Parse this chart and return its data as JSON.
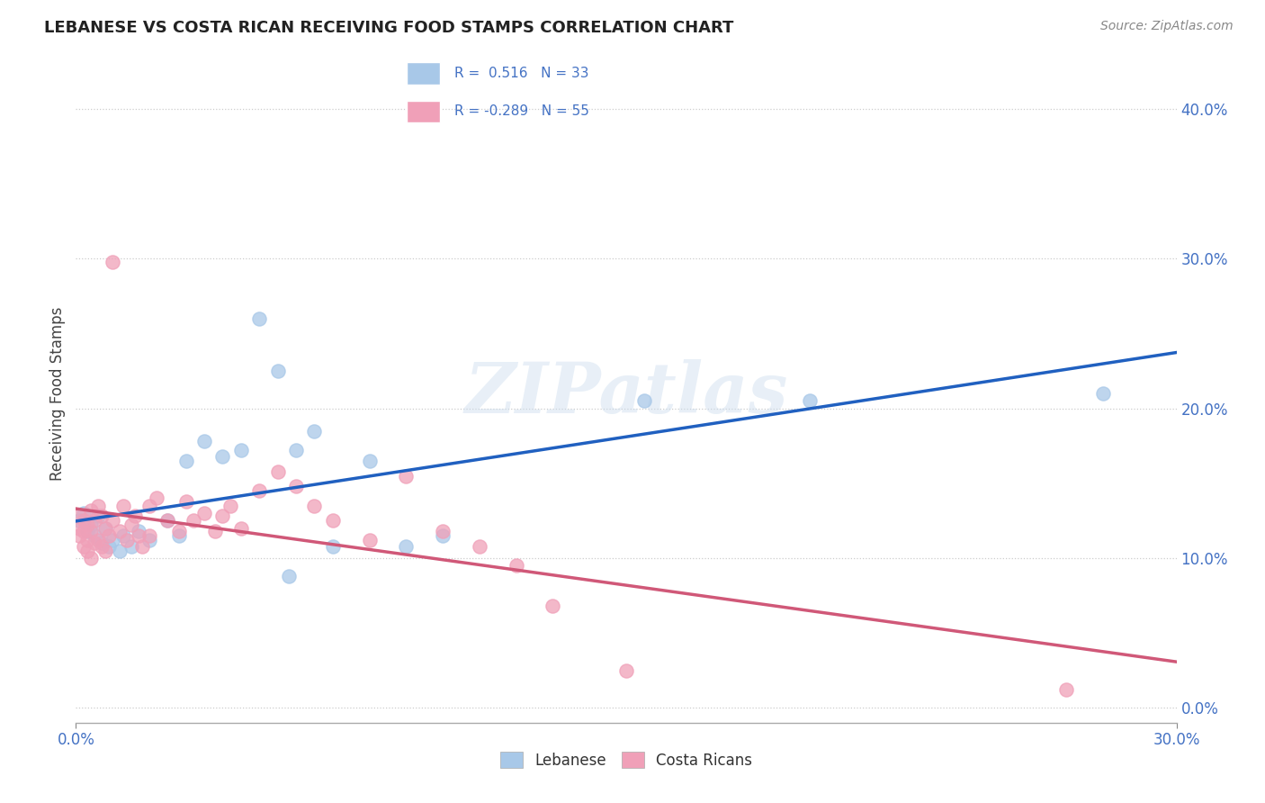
{
  "title": "LEBANESE VS COSTA RICAN RECEIVING FOOD STAMPS CORRELATION CHART",
  "source": "Source: ZipAtlas.com",
  "ylabel": "Receiving Food Stamps",
  "ytick_labels": [
    "0.0%",
    "10.0%",
    "20.0%",
    "30.0%",
    "40.0%"
  ],
  "ytick_values": [
    0.0,
    0.1,
    0.2,
    0.3,
    0.4
  ],
  "xlim": [
    0.0,
    0.3
  ],
  "ylim": [
    -0.01,
    0.43
  ],
  "legend_r_blue": "R =  0.516",
  "legend_n_blue": "N = 33",
  "legend_r_pink": "R = -0.289",
  "legend_n_pink": "N = 55",
  "blue_color": "#A8C8E8",
  "pink_color": "#F0A0B8",
  "line_blue": "#2060C0",
  "line_pink": "#D05878",
  "watermark": "ZIPatlas",
  "blue_scatter": [
    [
      0.001,
      0.125
    ],
    [
      0.002,
      0.13
    ],
    [
      0.003,
      0.118
    ],
    [
      0.004,
      0.122
    ],
    [
      0.005,
      0.115
    ],
    [
      0.006,
      0.128
    ],
    [
      0.007,
      0.11
    ],
    [
      0.008,
      0.12
    ],
    [
      0.009,
      0.108
    ],
    [
      0.01,
      0.112
    ],
    [
      0.012,
      0.105
    ],
    [
      0.013,
      0.115
    ],
    [
      0.015,
      0.108
    ],
    [
      0.017,
      0.118
    ],
    [
      0.02,
      0.112
    ],
    [
      0.025,
      0.125
    ],
    [
      0.028,
      0.115
    ],
    [
      0.03,
      0.165
    ],
    [
      0.035,
      0.178
    ],
    [
      0.04,
      0.168
    ],
    [
      0.045,
      0.172
    ],
    [
      0.05,
      0.26
    ],
    [
      0.055,
      0.225
    ],
    [
      0.058,
      0.088
    ],
    [
      0.06,
      0.172
    ],
    [
      0.065,
      0.185
    ],
    [
      0.07,
      0.108
    ],
    [
      0.08,
      0.165
    ],
    [
      0.09,
      0.108
    ],
    [
      0.1,
      0.115
    ],
    [
      0.155,
      0.205
    ],
    [
      0.2,
      0.205
    ],
    [
      0.28,
      0.21
    ]
  ],
  "pink_scatter": [
    [
      0.001,
      0.128
    ],
    [
      0.001,
      0.12
    ],
    [
      0.001,
      0.115
    ],
    [
      0.002,
      0.125
    ],
    [
      0.002,
      0.118
    ],
    [
      0.002,
      0.108
    ],
    [
      0.003,
      0.122
    ],
    [
      0.003,
      0.112
    ],
    [
      0.003,
      0.105
    ],
    [
      0.004,
      0.132
    ],
    [
      0.004,
      0.118
    ],
    [
      0.004,
      0.1
    ],
    [
      0.005,
      0.125
    ],
    [
      0.005,
      0.11
    ],
    [
      0.006,
      0.135
    ],
    [
      0.006,
      0.112
    ],
    [
      0.007,
      0.128
    ],
    [
      0.007,
      0.108
    ],
    [
      0.008,
      0.12
    ],
    [
      0.008,
      0.105
    ],
    [
      0.009,
      0.115
    ],
    [
      0.01,
      0.125
    ],
    [
      0.01,
      0.298
    ],
    [
      0.012,
      0.118
    ],
    [
      0.013,
      0.135
    ],
    [
      0.014,
      0.112
    ],
    [
      0.015,
      0.122
    ],
    [
      0.016,
      0.128
    ],
    [
      0.017,
      0.115
    ],
    [
      0.018,
      0.108
    ],
    [
      0.02,
      0.135
    ],
    [
      0.02,
      0.115
    ],
    [
      0.022,
      0.14
    ],
    [
      0.025,
      0.125
    ],
    [
      0.028,
      0.118
    ],
    [
      0.03,
      0.138
    ],
    [
      0.032,
      0.125
    ],
    [
      0.035,
      0.13
    ],
    [
      0.038,
      0.118
    ],
    [
      0.04,
      0.128
    ],
    [
      0.042,
      0.135
    ],
    [
      0.045,
      0.12
    ],
    [
      0.05,
      0.145
    ],
    [
      0.055,
      0.158
    ],
    [
      0.06,
      0.148
    ],
    [
      0.065,
      0.135
    ],
    [
      0.07,
      0.125
    ],
    [
      0.08,
      0.112
    ],
    [
      0.09,
      0.155
    ],
    [
      0.1,
      0.118
    ],
    [
      0.11,
      0.108
    ],
    [
      0.12,
      0.095
    ],
    [
      0.13,
      0.068
    ],
    [
      0.15,
      0.025
    ],
    [
      0.27,
      0.012
    ]
  ]
}
